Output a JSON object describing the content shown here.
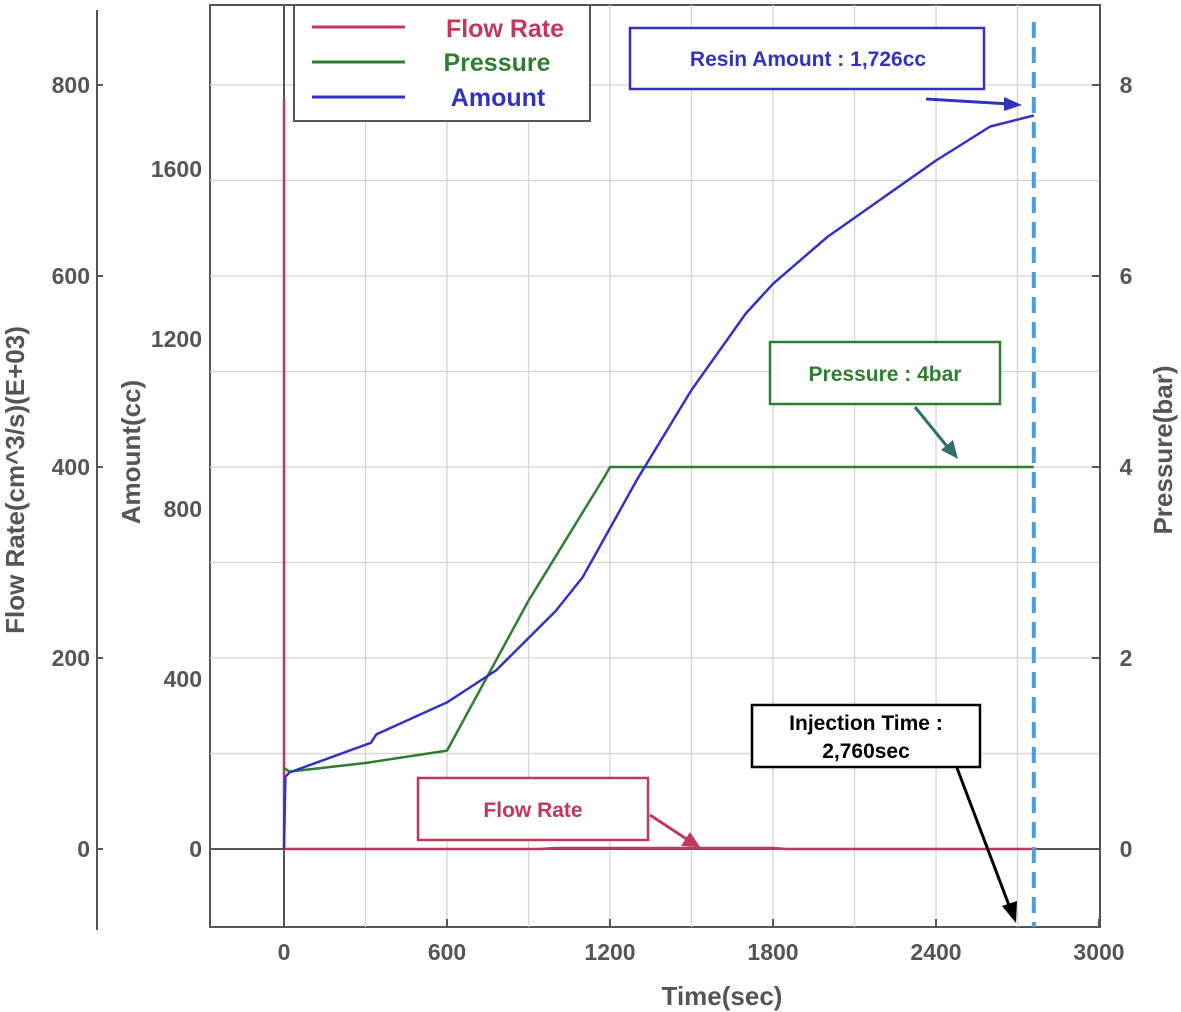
{
  "chart_data": {
    "type": "line",
    "xlabel": "Time(sec)",
    "x_ticks": [
      "0",
      "600",
      "1200",
      "1800",
      "2400",
      "3000"
    ],
    "xlim": [
      -280,
      3020
    ],
    "axes": {
      "flow_rate": {
        "label": "Flow Rate(cm^3/s)(E+03)",
        "ticks": [
          "0",
          "200",
          "400",
          "600",
          "800"
        ],
        "ylim": [
          0,
          800
        ]
      },
      "amount": {
        "label": "Amount(cc)",
        "ticks": [
          "0",
          "400",
          "800",
          "1200",
          "1600"
        ],
        "ylim": [
          0,
          1600
        ]
      },
      "pressure": {
        "label": "Pressure(bar)",
        "ticks": [
          "0",
          "2",
          "4",
          "6",
          "8"
        ],
        "ylim": [
          -1,
          8.8
        ]
      }
    },
    "grid": true,
    "legend_position": "top-left",
    "series": [
      {
        "name": "Flow Rate",
        "axis": "flow_rate",
        "color": "#c0395a",
        "points": [
          [
            0,
            785
          ],
          [
            0,
            0
          ],
          [
            940,
            0
          ],
          [
            1000,
            1
          ],
          [
            1800,
            1
          ],
          [
            1850,
            0
          ],
          [
            2760,
            0
          ]
        ]
      },
      {
        "name": "Pressure",
        "axis": "pressure",
        "color": "#2e7d32",
        "points": [
          [
            0,
            0.85
          ],
          [
            20,
            0.81
          ],
          [
            300,
            0.9
          ],
          [
            600,
            1.03
          ],
          [
            900,
            2.6
          ],
          [
            1180,
            3.9
          ],
          [
            1200,
            4.0
          ],
          [
            2760,
            4.0
          ]
        ]
      },
      {
        "name": "Amount",
        "axis": "amount",
        "color": "#3232c0",
        "points": [
          [
            0,
            0
          ],
          [
            5,
            170
          ],
          [
            20,
            180
          ],
          [
            320,
            250
          ],
          [
            340,
            270
          ],
          [
            600,
            345
          ],
          [
            780,
            420
          ],
          [
            1000,
            560
          ],
          [
            1100,
            640
          ],
          [
            1300,
            870
          ],
          [
            1500,
            1080
          ],
          [
            1700,
            1260
          ],
          [
            1800,
            1330
          ],
          [
            2000,
            1440
          ],
          [
            2400,
            1620
          ],
          [
            2600,
            1700
          ],
          [
            2760,
            1726
          ]
        ]
      }
    ],
    "legend": [
      "Flow Rate",
      "Pressure",
      "Amount"
    ],
    "annotations": {
      "resin": "Resin Amount : 1,726cc",
      "pressure": "Pressure : 4bar",
      "flow": "Flow Rate",
      "injection_line1": "Injection Time :",
      "injection_line2": "2,760sec"
    },
    "injection_time": 2760,
    "colors": {
      "flow": "#c0395a",
      "pressure": "#2e7d32",
      "amount": "#3232c0",
      "injection_line": "#4a9fdc",
      "axis_text": "#555555"
    }
  }
}
